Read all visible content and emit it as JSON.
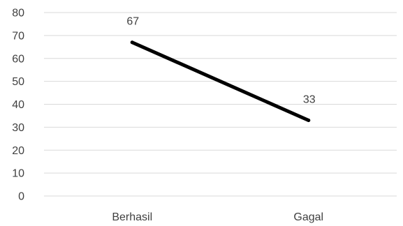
{
  "chart_data": {
    "type": "line",
    "categories": [
      "Berhasil",
      "Gagal"
    ],
    "series": [
      {
        "values": [
          67,
          33
        ],
        "color": "#000000"
      }
    ],
    "data_labels": [
      "67",
      "33"
    ],
    "ylim": [
      0,
      80
    ],
    "yticks": [
      "0",
      "10",
      "20",
      "30",
      "40",
      "50",
      "60",
      "70",
      "80"
    ],
    "grid": true,
    "legend": "none"
  }
}
